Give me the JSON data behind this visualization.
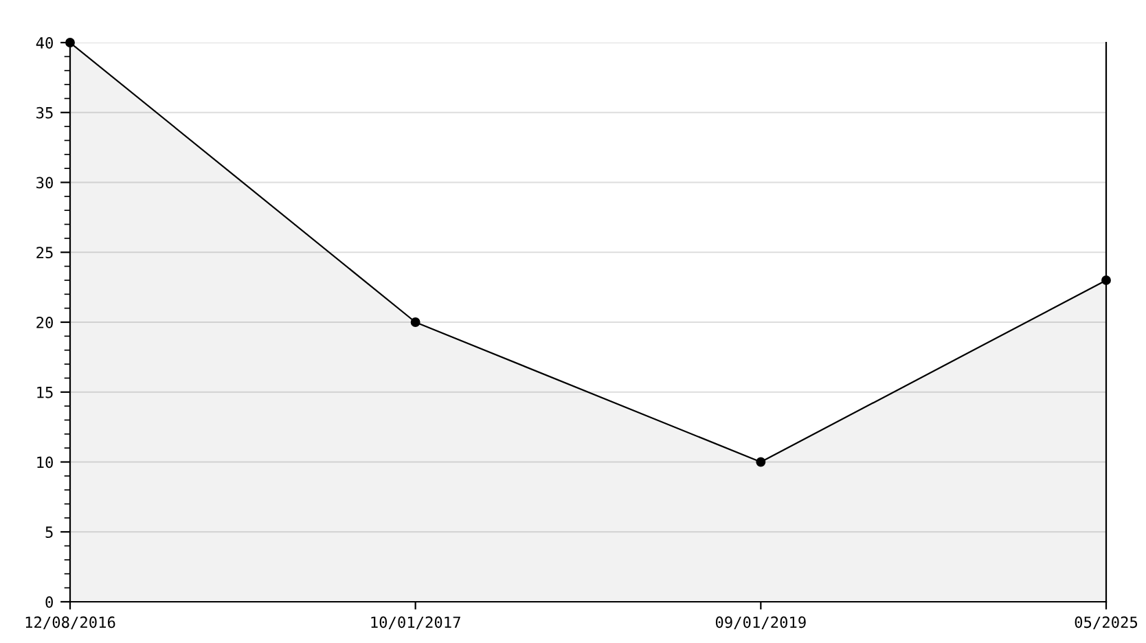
{
  "chart_data": {
    "type": "area",
    "categories": [
      "12/08/2016",
      "10/01/2017",
      "09/01/2019",
      "05/2025"
    ],
    "series": [
      {
        "color": "#000000",
        "values": [
          40,
          20,
          10,
          23
        ]
      }
    ],
    "ylim": [
      0,
      40
    ],
    "yticks": [
      0,
      5,
      10,
      15,
      20,
      25,
      30,
      35,
      40
    ],
    "grid": "y",
    "marker": "circle",
    "line_style": "solid",
    "legend": false
  }
}
